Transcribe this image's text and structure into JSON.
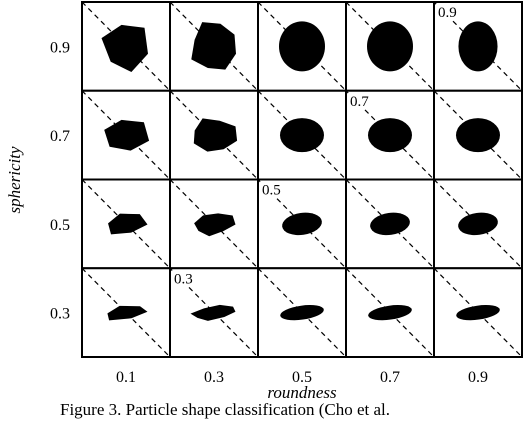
{
  "figure": {
    "y_axis": {
      "title": "sphericity",
      "labels": [
        "0.9",
        "0.7",
        "0.5",
        "0.3"
      ]
    },
    "x_axis": {
      "title": "roundness",
      "labels": [
        "0.1",
        "0.3",
        "0.5",
        "0.7",
        "0.9"
      ]
    },
    "diagonal_labels": [
      "0.9",
      "0.7",
      "0.5",
      "0.3"
    ],
    "caption": "Figure 3. Particle shape classification (Cho et al."
  }
}
